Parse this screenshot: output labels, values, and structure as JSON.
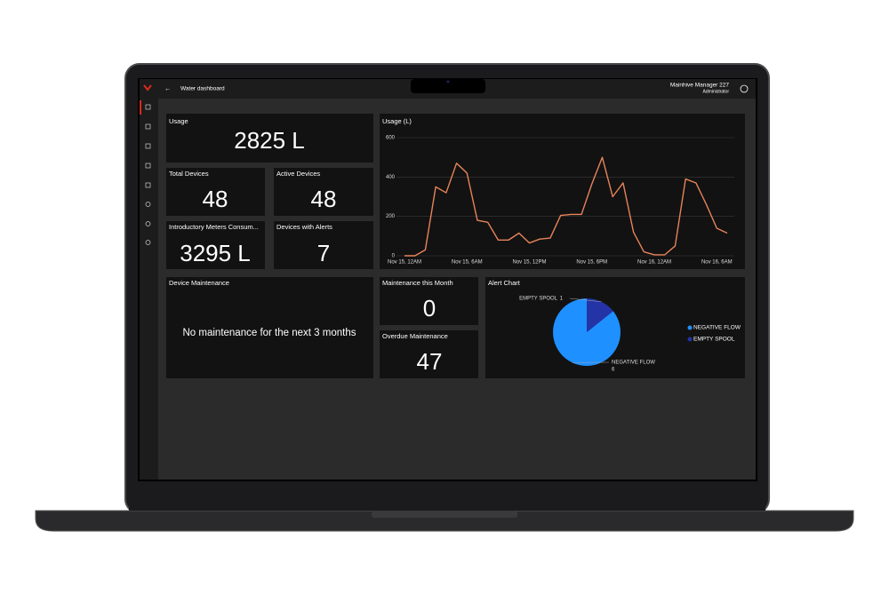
{
  "header": {
    "title": "Water dashboard",
    "user": "Mainhive Manager 227",
    "role": "Administrator"
  },
  "cards": [
    {
      "title": "Usage",
      "value": "2825 L"
    },
    {
      "title": "Total Devices",
      "value": 48
    },
    {
      "title": "Active Devices",
      "value": 48
    },
    {
      "title": "Introductory Meters Consum...",
      "value": "3295 L"
    },
    {
      "title": "Devices with Alerts",
      "value": 7
    },
    {
      "title": "Maintenance this Month",
      "value": 0
    },
    {
      "title": "Overdue Maintenance",
      "value": 47
    }
  ],
  "maintenance": {
    "title": "Device Maintenance",
    "message": "No maintenance for the next 3 months"
  },
  "chart_data": [
    {
      "type": "line",
      "title": "Usage (L)",
      "categories": [
        "Nov 15, 12AM",
        null,
        null,
        null,
        null,
        null,
        "Nov 15, 6AM",
        null,
        null,
        null,
        null,
        null,
        "Nov 15, 12PM",
        null,
        null,
        null,
        null,
        null,
        "Nov 15, 6PM",
        null,
        null,
        null,
        null,
        null,
        "Nov 16, 12AM",
        null,
        null,
        null,
        null,
        null,
        "Nov 16, 6AM",
        null
      ],
      "values": [
        0,
        0,
        30,
        350,
        320,
        470,
        420,
        180,
        170,
        80,
        80,
        115,
        65,
        85,
        90,
        205,
        210,
        210,
        365,
        500,
        300,
        370,
        120,
        20,
        5,
        5,
        50,
        390,
        370,
        260,
        140,
        115
      ],
      "color": "#e8845a",
      "ylim": [
        0,
        600
      ],
      "yticks": [
        0,
        200,
        400,
        600
      ],
      "grid": true
    },
    {
      "type": "pie",
      "title": "Alert Chart",
      "categories": [
        "NEGATIVE FLOW",
        "EMPTY SPOOL"
      ],
      "values": [
        6,
        1
      ],
      "colors": [
        "#1e90ff",
        "#2433a6"
      ],
      "legend": "right"
    }
  ]
}
